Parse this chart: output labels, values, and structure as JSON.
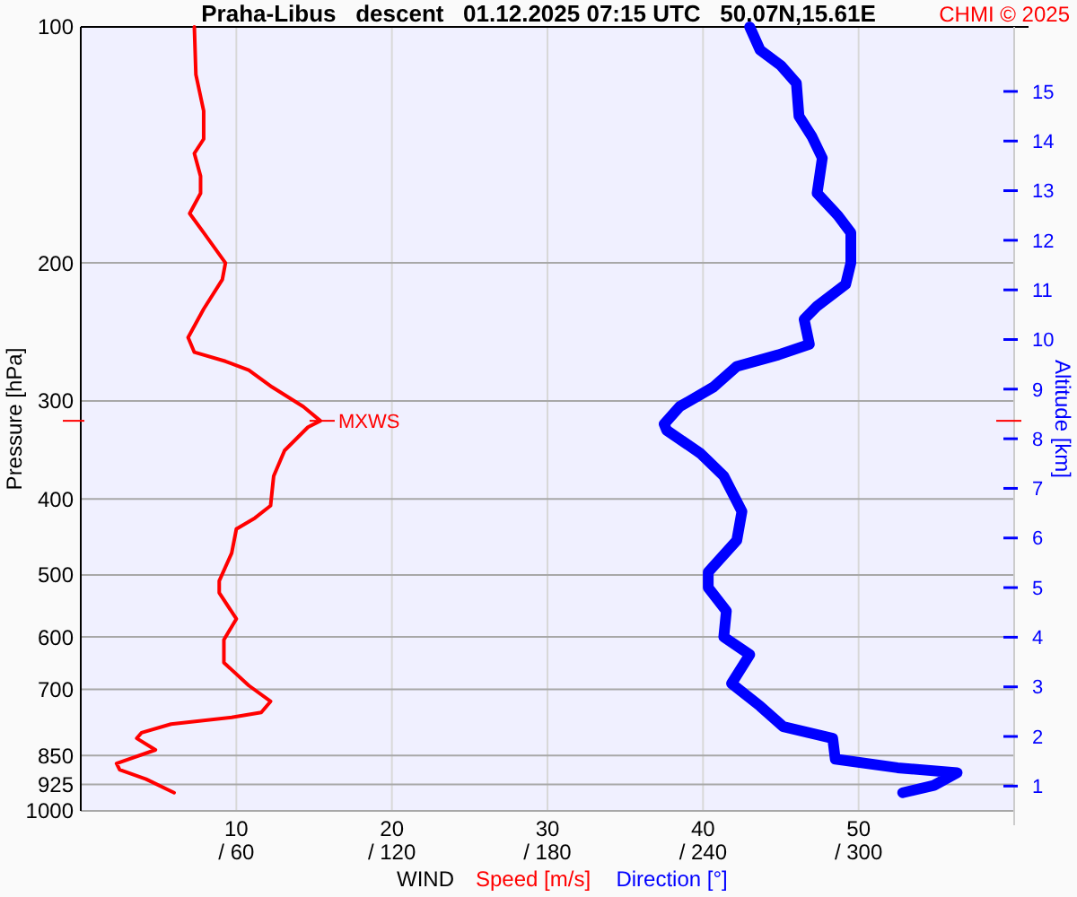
{
  "chart_data": {
    "type": "line",
    "title": "Praha-Libus   descent   01.12.2025 07:15 UTC   50.07N,15.61E",
    "xlabel": "WIND",
    "ylabel": "Pressure [hPa]",
    "y2label": "Altitude [km]",
    "annotations": [
      {
        "text": "MXWS",
        "x": 15.4,
        "y": 318
      },
      "CHMI © 2025"
    ],
    "log": "y",
    "grid": true,
    "legend": "bottom",
    "xlim": [
      0,
      60
    ],
    "xticks": [
      10,
      20,
      30,
      40,
      50
    ],
    "x2lim": [
      0,
      360
    ],
    "x2ticks": [
      {
        "value": 60,
        "label": "/ 60"
      },
      {
        "value": 120,
        "label": "/ 120"
      },
      {
        "value": 180,
        "label": "/ 180"
      },
      {
        "value": 240,
        "label": "/ 240"
      },
      {
        "value": 300,
        "label": "/ 300"
      }
    ],
    "ylim": [
      1000,
      100
    ],
    "yticks": [
      100,
      200,
      300,
      400,
      500,
      600,
      700,
      850,
      925,
      1000
    ],
    "y2lim": [
      0.5,
      16.3
    ],
    "y2ticks": [
      1,
      2,
      3,
      4,
      5,
      6,
      7,
      8,
      9,
      10,
      11,
      12,
      13,
      14,
      15
    ],
    "series": [
      {
        "name": "Speed [m/s]",
        "color": "#ff0000",
        "x": [
          7.3,
          7.4,
          7.9,
          7.9,
          7.3,
          7.7,
          7.7,
          7.0,
          7.9,
          9.3,
          9.1,
          7.9,
          6.9,
          7.3,
          9.3,
          10.8,
          12.3,
          14.3,
          15.4,
          14.6,
          13.1,
          12.4,
          12.2,
          11.2,
          10.0,
          9.7,
          8.9,
          8.9,
          10.0,
          9.2,
          9.2,
          10.8,
          12.2,
          11.6,
          9.7,
          5.8,
          3.9,
          3.6,
          4.8,
          2.3,
          2.5,
          4.2,
          6.0
        ],
        "values": [
          100,
          115,
          128,
          139,
          145,
          155,
          163,
          173,
          183,
          200,
          210,
          229,
          249,
          260,
          267,
          274,
          288,
          305,
          318,
          324,
          347,
          374,
          408,
          423,
          437,
          469,
          509,
          527,
          569,
          605,
          647,
          692,
          725,
          749,
          760,
          775,
          795,
          808,
          836,
          870,
          886,
          911,
          948
        ]
      },
      {
        "name": "Direction [°]",
        "color": "#0000ff",
        "axis": "x2",
        "x": [
          258,
          262,
          270,
          276,
          277,
          282,
          286,
          284,
          292,
          297,
          297,
          295,
          284,
          279,
          281,
          269,
          253,
          244,
          231,
          225,
          226,
          239,
          248,
          255,
          253,
          242,
          242,
          249,
          248,
          258,
          251,
          262,
          271,
          290,
          291,
          315,
          338,
          329,
          317
        ],
        "values": [
          100,
          107,
          112,
          118,
          130,
          138,
          147,
          163,
          174,
          183,
          200,
          213,
          227,
          236,
          254,
          262,
          271,
          288,
          305,
          321,
          327,
          350,
          374,
          415,
          452,
          496,
          519,
          556,
          600,
          632,
          688,
          735,
          781,
          808,
          859,
          881,
          894,
          928,
          948
        ]
      }
    ]
  }
}
